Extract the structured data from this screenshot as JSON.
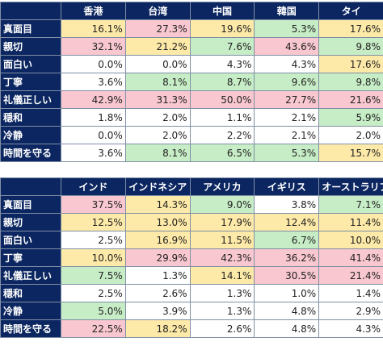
{
  "chart_data": [
    {
      "type": "table",
      "columns": [
        "香港",
        "台湾",
        "中国",
        "韓国",
        "タイ"
      ],
      "rows": [
        {
          "label": "真面目",
          "values": [
            "16.1%",
            "27.3%",
            "19.6%",
            "5.3%",
            "17.6%"
          ],
          "colors": [
            "yellow",
            "red",
            "yellow",
            "green",
            "yellow"
          ]
        },
        {
          "label": "親切",
          "values": [
            "32.1%",
            "21.2%",
            "7.6%",
            "43.6%",
            "9.8%"
          ],
          "colors": [
            "red",
            "yellow",
            "green",
            "red",
            "green"
          ]
        },
        {
          "label": "面白い",
          "values": [
            "0.0%",
            "0.0%",
            "4.3%",
            "4.3%",
            "17.6%"
          ],
          "colors": [
            "white",
            "white",
            "white",
            "white",
            "yellow"
          ]
        },
        {
          "label": "丁寧",
          "values": [
            "3.6%",
            "8.1%",
            "8.7%",
            "9.6%",
            "9.8%"
          ],
          "colors": [
            "white",
            "green",
            "green",
            "green",
            "green"
          ]
        },
        {
          "label": "礼儀正しい",
          "values": [
            "42.9%",
            "31.3%",
            "50.0%",
            "27.7%",
            "21.6%"
          ],
          "colors": [
            "red",
            "red",
            "red",
            "red",
            "red"
          ]
        },
        {
          "label": "穏和",
          "values": [
            "1.8%",
            "2.0%",
            "1.1%",
            "2.1%",
            "5.9%"
          ],
          "colors": [
            "white",
            "white",
            "white",
            "white",
            "green"
          ]
        },
        {
          "label": "冷静",
          "values": [
            "0.0%",
            "2.0%",
            "2.2%",
            "2.1%",
            "2.0%"
          ],
          "colors": [
            "white",
            "white",
            "white",
            "white",
            "white"
          ]
        },
        {
          "label": "時間を守る",
          "values": [
            "3.6%",
            "8.1%",
            "6.5%",
            "5.3%",
            "15.7%"
          ],
          "colors": [
            "white",
            "green",
            "green",
            "green",
            "yellow"
          ]
        }
      ]
    },
    {
      "type": "table",
      "columns": [
        "インド",
        "インドネシア",
        "アメリカ",
        "イギリス",
        "オーストラリア"
      ],
      "rows": [
        {
          "label": "真面目",
          "values": [
            "37.5%",
            "14.3%",
            "9.0%",
            "3.8%",
            "7.1%"
          ],
          "colors": [
            "red",
            "yellow",
            "green",
            "white",
            "green"
          ]
        },
        {
          "label": "親切",
          "values": [
            "12.5%",
            "13.0%",
            "17.9%",
            "12.4%",
            "11.4%"
          ],
          "colors": [
            "yellow",
            "yellow",
            "yellow",
            "yellow",
            "yellow"
          ]
        },
        {
          "label": "面白い",
          "values": [
            "2.5%",
            "16.9%",
            "11.5%",
            "6.7%",
            "10.0%"
          ],
          "colors": [
            "white",
            "yellow",
            "yellow",
            "green",
            "yellow"
          ]
        },
        {
          "label": "丁寧",
          "values": [
            "10.0%",
            "29.9%",
            "42.3%",
            "36.2%",
            "41.4%"
          ],
          "colors": [
            "yellow",
            "red",
            "red",
            "red",
            "red"
          ]
        },
        {
          "label": "礼儀正しい",
          "values": [
            "7.5%",
            "1.3%",
            "14.1%",
            "30.5%",
            "21.4%"
          ],
          "colors": [
            "green",
            "white",
            "yellow",
            "red",
            "red"
          ]
        },
        {
          "label": "穏和",
          "values": [
            "2.5%",
            "2.6%",
            "1.3%",
            "1.0%",
            "1.4%"
          ],
          "colors": [
            "white",
            "white",
            "white",
            "white",
            "white"
          ]
        },
        {
          "label": "冷静",
          "values": [
            "5.0%",
            "3.9%",
            "1.3%",
            "4.8%",
            "2.9%"
          ],
          "colors": [
            "green",
            "white",
            "white",
            "white",
            "white"
          ]
        },
        {
          "label": "時間を守る",
          "values": [
            "22.5%",
            "18.2%",
            "2.6%",
            "4.8%",
            "4.3%"
          ],
          "colors": [
            "red",
            "yellow",
            "white",
            "white",
            "white"
          ]
        }
      ]
    }
  ],
  "palette": {
    "white": "#ffffff",
    "red": "#f8c7cf",
    "yellow": "#fde9a8",
    "green": "#c7edc6",
    "header": "#0b2660"
  }
}
